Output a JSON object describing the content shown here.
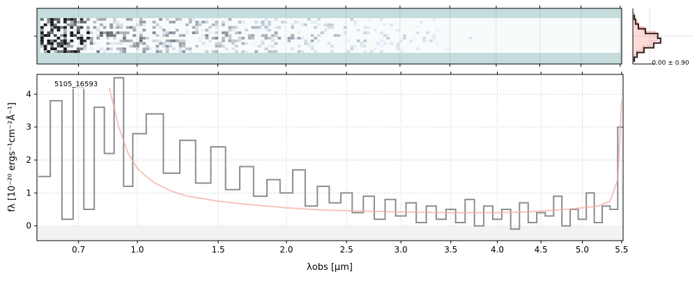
{
  "chart_data": [
    {
      "panel": "2d-spectrum",
      "type": "heatmap",
      "colormap": "bone_r",
      "background_color": "#c5dcdc",
      "rows": 13,
      "cols": 176
    },
    {
      "panel": "cross-dispersion-profile",
      "type": "line",
      "annotation": "0.00 ± 0.90",
      "profile": [
        0.05,
        0.1,
        0.2,
        0.45,
        0.9,
        1.0,
        0.75,
        0.4,
        0.15,
        0.05
      ],
      "model_color": "#fbd3cc",
      "data_color": "#3b2220"
    },
    {
      "panel": "1d-spectrum",
      "type": "line",
      "label": "5105_16593",
      "xlabel": "λobs [μm]",
      "ylabel": "fλ [10⁻²⁰ ergs⁻¹cm⁻²Å⁻¹]",
      "x_scale": "sqrt",
      "xlim": [
        0.52,
        5.52
      ],
      "ylim": [
        -0.45,
        4.6
      ],
      "grid": true,
      "x_ticks": [
        0.7,
        1.0,
        1.5,
        2.0,
        2.5,
        3.0,
        3.5,
        4.0,
        4.5,
        5.0,
        5.5
      ],
      "x_tick_labels": [
        "0.7",
        "1.0",
        "1.5",
        "2.0",
        "2.5",
        "3.0",
        "3.5",
        "4.0",
        "4.5",
        "5.0",
        "5.5"
      ],
      "y_ticks": [
        0,
        1,
        2,
        3,
        4
      ],
      "y_tick_labels": [
        "0",
        "1",
        "2",
        "3",
        "4"
      ],
      "series": [
        {
          "role": "data",
          "color": "#8c8c8c",
          "x": [
            0.55,
            0.6,
            0.65,
            0.7,
            0.75,
            0.8,
            0.85,
            0.9,
            0.95,
            1.0,
            1.1,
            1.2,
            1.3,
            1.4,
            1.5,
            1.6,
            1.7,
            1.8,
            1.9,
            2.0,
            2.1,
            2.2,
            2.3,
            2.4,
            2.5,
            2.6,
            2.7,
            2.8,
            2.9,
            3.0,
            3.1,
            3.2,
            3.3,
            3.4,
            3.5,
            3.6,
            3.7,
            3.8,
            3.9,
            4.0,
            4.1,
            4.2,
            4.3,
            4.4,
            4.5,
            4.6,
            4.7,
            4.8,
            4.9,
            5.0,
            5.1,
            5.2,
            5.3,
            5.4,
            5.5
          ],
          "y": [
            1.5,
            3.8,
            0.2,
            4.2,
            0.5,
            3.6,
            2.2,
            4.5,
            1.2,
            2.8,
            3.4,
            1.6,
            2.6,
            1.3,
            2.4,
            1.1,
            1.8,
            0.9,
            1.4,
            1.0,
            1.7,
            0.6,
            1.2,
            0.7,
            1.0,
            0.4,
            0.9,
            0.2,
            0.8,
            0.3,
            0.7,
            0.1,
            0.6,
            0.2,
            0.5,
            0.1,
            0.8,
            0.0,
            0.6,
            0.2,
            0.5,
            -0.1,
            0.7,
            0.1,
            0.4,
            0.3,
            0.9,
            0.0,
            0.5,
            0.2,
            1.0,
            0.1,
            0.6,
            0.5,
            3.0
          ]
        },
        {
          "role": "model",
          "color": "#f4a9a3",
          "x": [
            0.85,
            0.9,
            0.95,
            1.0,
            1.05,
            1.1,
            1.2,
            1.3,
            1.5,
            1.7,
            2.0,
            2.3,
            2.6,
            3.0,
            3.5,
            4.0,
            4.3,
            4.5,
            4.8,
            5.0,
            5.2,
            5.35,
            5.45,
            5.5
          ],
          "y": [
            4.2,
            3.0,
            2.2,
            1.75,
            1.5,
            1.3,
            1.05,
            0.9,
            0.75,
            0.65,
            0.55,
            0.48,
            0.45,
            0.42,
            0.4,
            0.4,
            0.42,
            0.45,
            0.5,
            0.55,
            0.6,
            0.75,
            1.4,
            3.8
          ]
        }
      ]
    }
  ]
}
